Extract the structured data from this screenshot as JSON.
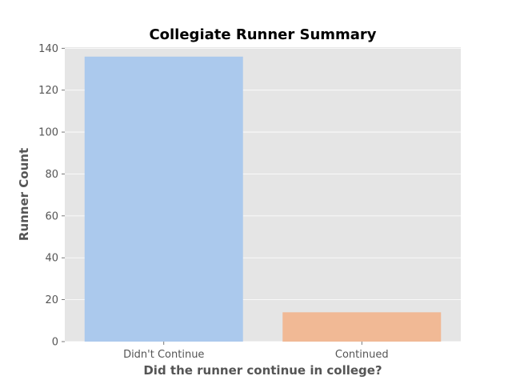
{
  "chart_data": {
    "type": "bar",
    "title": "Collegiate Runner Summary",
    "xlabel": "Did the runner continue in college?",
    "ylabel": "Runner Count",
    "categories": [
      "Didn't Continue",
      "Continued"
    ],
    "values": [
      136,
      14
    ],
    "colors": [
      "#abc9ed",
      "#f1b995"
    ],
    "background": "#e5e5e5",
    "ylim": [
      0,
      140.5
    ],
    "yticks": [
      0,
      20,
      40,
      60,
      80,
      100,
      120,
      140
    ],
    "ytick_labels": [
      "0",
      "20",
      "40",
      "60",
      "80",
      "100",
      "120",
      "140"
    ],
    "grid": true,
    "legend": "none"
  }
}
